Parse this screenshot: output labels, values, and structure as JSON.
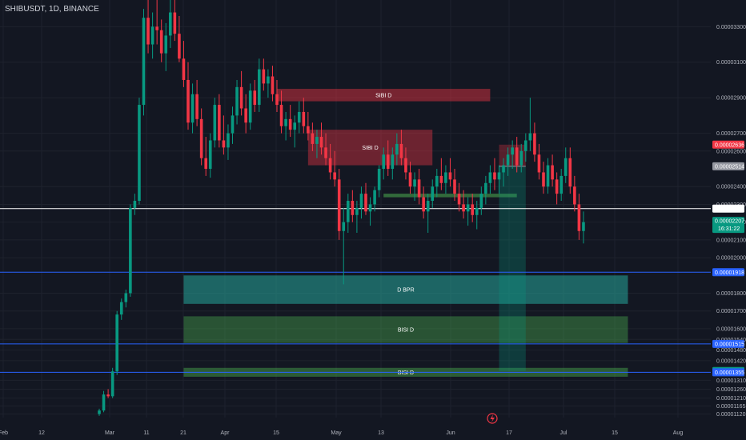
{
  "header": {
    "symbol": "SHIBUSDT, 1D, BINANCE"
  },
  "chart_data": {
    "type": "candlestick",
    "symbol": "SHIBUSDT",
    "timeframe": "1D",
    "exchange": "BINANCE",
    "y_range": [
      1.1e-05,
      3.45e-05
    ],
    "price_ticks": [
      "0.00003300",
      "0.00003100",
      "0.00002900",
      "0.00002700",
      "0.00002600",
      "0.00002400",
      "0.00002300",
      "0.00002200",
      "0.00002100",
      "0.00002000",
      "0.00001800",
      "0.00001700",
      "0.00001600",
      "0.00001540",
      "0.00001480",
      "0.00001420",
      "0.00001310",
      "0.00001260",
      "0.00001210",
      "0.00001165",
      "0.00001120"
    ],
    "time_ticks": [
      "Feb",
      "12",
      "Mar",
      "11",
      "21",
      "Apr",
      "15",
      "May",
      "13",
      "Jun",
      "17",
      "Jul",
      "15",
      "Aug"
    ],
    "price_tags": [
      {
        "text": "0.00002636",
        "price": 2.636e-05,
        "color": "#f23645"
      },
      {
        "text": "0.00002514",
        "price": 2.514e-05,
        "color": "#9598a1"
      },
      {
        "text": "0.00002276",
        "price": 2.276e-05,
        "color": "#ffffff"
      },
      {
        "text": "0.00002207",
        "price": 2.207e-05,
        "color": "#089981",
        "sub": "16:31:22"
      },
      {
        "text": "0.00001918",
        "price": 1.918e-05,
        "color": "#2962ff"
      },
      {
        "text": "0.00001515",
        "price": 1.515e-05,
        "color": "#2962ff"
      },
      {
        "text": "0.00001362",
        "price": 1.362e-05,
        "color": "#089981"
      },
      {
        "text": "0.00001355",
        "price": 1.355e-05,
        "color": "#2962ff"
      }
    ],
    "horizontal_lines": [
      {
        "price": 2.276e-05,
        "color": "#ffffff"
      },
      {
        "price": 1.918e-05,
        "color": "#2962ff"
      },
      {
        "price": 1.515e-05,
        "color": "#2962ff"
      },
      {
        "price": 1.355e-05,
        "color": "#2962ff"
      }
    ],
    "zones": [
      {
        "label": "SIBI D",
        "top": 2.95e-05,
        "bottom": 2.88e-05,
        "start": 40,
        "end": 88,
        "fill": "rgba(242,54,69,0.45)"
      },
      {
        "label": "SIBI D",
        "top": 2.72e-05,
        "bottom": 2.52e-05,
        "start": 47,
        "end": 75,
        "fill": "rgba(242,54,69,0.40)"
      },
      {
        "label": "D BPR",
        "top": 1.9e-05,
        "bottom": 1.74e-05,
        "start": 19,
        "end": 119,
        "fill": "rgba(38,166,154,0.55)"
      },
      {
        "label": "BISI D",
        "top": 1.67e-05,
        "bottom": 1.52e-05,
        "start": 19,
        "end": 119,
        "fill": "rgba(76,175,80,0.40)"
      },
      {
        "label": "BISI D",
        "top": 1.38e-05,
        "bottom": 1.33e-05,
        "start": 19,
        "end": 119,
        "fill": "rgba(76,175,80,0.45)"
      },
      {
        "label": "",
        "top": 2.36e-05,
        "bottom": 2.34e-05,
        "start": 64,
        "end": 94,
        "fill": "rgba(76,175,80,0.55)"
      }
    ],
    "position": {
      "entry": 2.514e-05,
      "stop_top": 2.636e-05,
      "target": 1.362e-05,
      "start": 90,
      "end": 96
    },
    "candles": [
      [
        1.12e-05,
        1.15e-05,
        1.11e-05,
        1.14e-05
      ],
      [
        1.14e-05,
        1.25e-05,
        1.13e-05,
        1.23e-05
      ],
      [
        1.23e-05,
        1.26e-05,
        1.21e-05,
        1.22e-05
      ],
      [
        1.22e-05,
        1.38e-05,
        1.21e-05,
        1.36e-05
      ],
      [
        1.36e-05,
        1.7e-05,
        1.34e-05,
        1.68e-05
      ],
      [
        1.68e-05,
        1.77e-05,
        1.65e-05,
        1.75e-05
      ],
      [
        1.75e-05,
        1.82e-05,
        1.72e-05,
        1.8e-05
      ],
      [
        1.8e-05,
        2.3e-05,
        1.78e-05,
        2.28e-05
      ],
      [
        2.28e-05,
        2.36e-05,
        2.24e-05,
        2.32e-05
      ],
      [
        2.32e-05,
        2.9e-05,
        2.3e-05,
        2.86e-05
      ],
      [
        2.86e-05,
        3.4e-05,
        2.8e-05,
        3.35e-05
      ],
      [
        3.35e-05,
        3.48e-05,
        3.15e-05,
        3.2e-05
      ],
      [
        3.2e-05,
        3.38e-05,
        3.12e-05,
        3.3e-05
      ],
      [
        3.3e-05,
        3.45e-05,
        3.2e-05,
        3.28e-05
      ],
      [
        3.28e-05,
        3.34e-05,
        3.1e-05,
        3.15e-05
      ],
      [
        3.15e-05,
        3.32e-05,
        3.05e-05,
        3.25e-05
      ],
      [
        3.25e-05,
        3.45e-05,
        3.18e-05,
        3.38e-05
      ],
      [
        3.38e-05,
        3.45e-05,
        3.22e-05,
        3.26e-05
      ],
      [
        3.26e-05,
        3.36e-05,
        3.1e-05,
        3.12e-05
      ],
      [
        3.12e-05,
        3.22e-05,
        2.96e-05,
        3e-05
      ],
      [
        3e-05,
        3.1e-05,
        2.72e-05,
        2.76e-05
      ],
      [
        2.76e-05,
        2.98e-05,
        2.7e-05,
        2.92e-05
      ],
      [
        2.92e-05,
        3e-05,
        2.74e-05,
        2.78e-05
      ],
      [
        2.78e-05,
        2.84e-05,
        2.52e-05,
        2.56e-05
      ],
      [
        2.56e-05,
        2.68e-05,
        2.46e-05,
        2.5e-05
      ],
      [
        2.5e-05,
        2.7e-05,
        2.45e-05,
        2.66e-05
      ],
      [
        2.66e-05,
        2.9e-05,
        2.62e-05,
        2.86e-05
      ],
      [
        2.86e-05,
        2.92e-05,
        2.62e-05,
        2.66e-05
      ],
      [
        2.66e-05,
        2.8e-05,
        2.58e-05,
        2.62e-05
      ],
      [
        2.62e-05,
        2.75e-05,
        2.55e-05,
        2.7e-05
      ],
      [
        2.7e-05,
        2.85e-05,
        2.64e-05,
        2.8e-05
      ],
      [
        2.8e-05,
        3e-05,
        2.75e-05,
        2.96e-05
      ],
      [
        2.96e-05,
        3.05e-05,
        2.8e-05,
        2.84e-05
      ],
      [
        2.84e-05,
        2.92e-05,
        2.7e-05,
        2.76e-05
      ],
      [
        2.76e-05,
        2.98e-05,
        2.72e-05,
        2.94e-05
      ],
      [
        2.94e-05,
        3e-05,
        2.82e-05,
        2.86e-05
      ],
      [
        2.86e-05,
        3.12e-05,
        2.82e-05,
        3.06e-05
      ],
      [
        3.06e-05,
        3.12e-05,
        2.94e-05,
        2.98e-05
      ],
      [
        2.98e-05,
        3.06e-05,
        2.9e-05,
        3.02e-05
      ],
      [
        3.02e-05,
        3.08e-05,
        2.88e-05,
        2.92e-05
      ],
      [
        2.92e-05,
        3e-05,
        2.82e-05,
        2.86e-05
      ],
      [
        2.86e-05,
        2.94e-05,
        2.7e-05,
        2.74e-05
      ],
      [
        2.74e-05,
        2.82e-05,
        2.66e-05,
        2.78e-05
      ],
      [
        2.78e-05,
        2.86e-05,
        2.68e-05,
        2.72e-05
      ],
      [
        2.72e-05,
        2.8e-05,
        2.62e-05,
        2.76e-05
      ],
      [
        2.76e-05,
        2.88e-05,
        2.7e-05,
        2.82e-05
      ],
      [
        2.82e-05,
        2.9e-05,
        2.7e-05,
        2.74e-05
      ],
      [
        2.74e-05,
        2.82e-05,
        2.66e-05,
        2.7e-05
      ],
      [
        2.7e-05,
        2.76e-05,
        2.6e-05,
        2.64e-05
      ],
      [
        2.64e-05,
        2.72e-05,
        2.56e-05,
        2.68e-05
      ],
      [
        2.68e-05,
        2.76e-05,
        2.58e-05,
        2.62e-05
      ],
      [
        2.62e-05,
        2.7e-05,
        2.52e-05,
        2.56e-05
      ],
      [
        2.56e-05,
        2.64e-05,
        2.44e-05,
        2.48e-05
      ],
      [
        2.48e-05,
        2.6e-05,
        2.4e-05,
        2.44e-05
      ],
      [
        2.44e-05,
        2.5e-05,
        2.1e-05,
        2.15e-05
      ],
      [
        2.15e-05,
        2.28e-05,
        1.85e-05,
        2.2e-05
      ],
      [
        2.2e-05,
        2.36e-05,
        2.14e-05,
        2.32e-05
      ],
      [
        2.32e-05,
        2.38e-05,
        2.2e-05,
        2.24e-05
      ],
      [
        2.24e-05,
        2.32e-05,
        2.14e-05,
        2.28e-05
      ],
      [
        2.28e-05,
        2.4e-05,
        2.22e-05,
        2.36e-05
      ],
      [
        2.36e-05,
        2.42e-05,
        2.24e-05,
        2.26e-05
      ],
      [
        2.26e-05,
        2.34e-05,
        2.18e-05,
        2.3e-05
      ],
      [
        2.3e-05,
        2.4e-05,
        2.26e-05,
        2.38e-05
      ],
      [
        2.38e-05,
        2.52e-05,
        2.34e-05,
        2.5e-05
      ],
      [
        2.5e-05,
        2.62e-05,
        2.44e-05,
        2.58e-05
      ],
      [
        2.58e-05,
        2.66e-05,
        2.46e-05,
        2.5e-05
      ],
      [
        2.5e-05,
        2.62e-05,
        2.44e-05,
        2.58e-05
      ],
      [
        2.58e-05,
        2.7e-05,
        2.52e-05,
        2.64e-05
      ],
      [
        2.64e-05,
        2.72e-05,
        2.52e-05,
        2.56e-05
      ],
      [
        2.56e-05,
        2.62e-05,
        2.44e-05,
        2.48e-05
      ],
      [
        2.48e-05,
        2.54e-05,
        2.36e-05,
        2.4e-05
      ],
      [
        2.4e-05,
        2.48e-05,
        2.32e-05,
        2.44e-05
      ],
      [
        2.44e-05,
        2.5e-05,
        2.3e-05,
        2.34e-05
      ],
      [
        2.34e-05,
        2.4e-05,
        2.22e-05,
        2.26e-05
      ],
      [
        2.26e-05,
        2.36e-05,
        2.14e-05,
        2.32e-05
      ],
      [
        2.32e-05,
        2.44e-05,
        2.28e-05,
        2.4e-05
      ],
      [
        2.4e-05,
        2.5e-05,
        2.34e-05,
        2.46e-05
      ],
      [
        2.46e-05,
        2.56e-05,
        2.38e-05,
        2.42e-05
      ],
      [
        2.42e-05,
        2.52e-05,
        2.36e-05,
        2.48e-05
      ],
      [
        2.48e-05,
        2.56e-05,
        2.4e-05,
        2.44e-05
      ],
      [
        2.44e-05,
        2.5e-05,
        2.32e-05,
        2.36e-05
      ],
      [
        2.36e-05,
        2.42e-05,
        2.26e-05,
        2.3e-05
      ],
      [
        2.3e-05,
        2.38e-05,
        2.22e-05,
        2.26e-05
      ],
      [
        2.26e-05,
        2.34e-05,
        2.18e-05,
        2.3e-05
      ],
      [
        2.3e-05,
        2.36e-05,
        2.2e-05,
        2.24e-05
      ],
      [
        2.24e-05,
        2.32e-05,
        2.16e-05,
        2.28e-05
      ],
      [
        2.28e-05,
        2.4e-05,
        2.24e-05,
        2.36e-05
      ],
      [
        2.36e-05,
        2.46e-05,
        2.3e-05,
        2.42e-05
      ],
      [
        2.42e-05,
        2.52e-05,
        2.36e-05,
        2.48e-05
      ],
      [
        2.48e-05,
        2.56e-05,
        2.38e-05,
        2.44e-05
      ],
      [
        2.44e-05,
        2.52e-05,
        2.36e-05,
        2.48e-05
      ],
      [
        2.48e-05,
        2.56e-05,
        2.4e-05,
        2.52e-05
      ],
      [
        2.52e-05,
        2.62e-05,
        2.46e-05,
        2.58e-05
      ],
      [
        2.58e-05,
        2.66e-05,
        2.5e-05,
        2.62e-05
      ],
      [
        2.62e-05,
        2.68e-05,
        2.48e-05,
        2.52e-05
      ],
      [
        2.52e-05,
        2.64e-05,
        2.48e-05,
        2.6e-05
      ],
      [
        2.6e-05,
        2.7e-05,
        2.54e-05,
        2.66e-05
      ],
      [
        2.66e-05,
        2.9e-05,
        2.6e-05,
        2.7e-05
      ],
      [
        2.7e-05,
        2.76e-05,
        2.54e-05,
        2.58e-05
      ],
      [
        2.58e-05,
        2.64e-05,
        2.44e-05,
        2.48e-05
      ],
      [
        2.48e-05,
        2.54e-05,
        2.36e-05,
        2.4e-05
      ],
      [
        2.4e-05,
        2.56e-05,
        2.36e-05,
        2.52e-05
      ],
      [
        2.52e-05,
        2.58e-05,
        2.4e-05,
        2.44e-05
      ],
      [
        2.44e-05,
        2.48e-05,
        2.3e-05,
        2.36e-05
      ],
      [
        2.36e-05,
        2.5e-05,
        2.32e-05,
        2.46e-05
      ],
      [
        2.46e-05,
        2.62e-05,
        2.42e-05,
        2.56e-05
      ],
      [
        2.56e-05,
        2.62e-05,
        2.36e-05,
        2.4e-05
      ],
      [
        2.4e-05,
        2.46e-05,
        2.26e-05,
        2.3e-05
      ],
      [
        2.3e-05,
        2.36e-05,
        2.1e-05,
        2.15e-05
      ],
      [
        2.15e-05,
        2.26e-05,
        2.08e-05,
        2.2e-05
      ]
    ]
  }
}
